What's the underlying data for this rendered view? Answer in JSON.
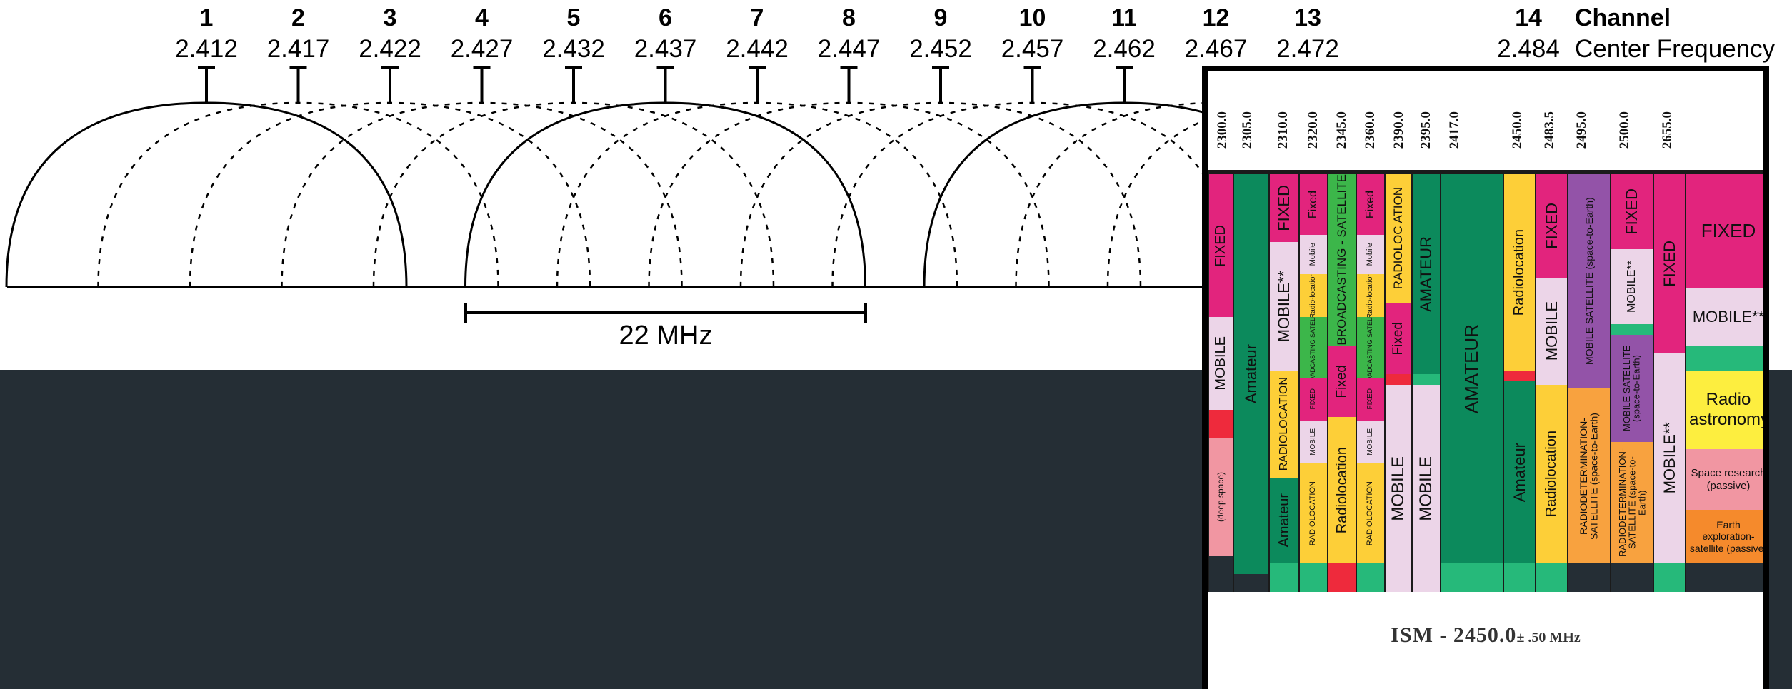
{
  "legend": {
    "channel": "Channel",
    "center_frequency": "Center Frequency"
  },
  "channels": [
    {
      "n": "1",
      "f": "2.412"
    },
    {
      "n": "2",
      "f": "2.417"
    },
    {
      "n": "3",
      "f": "2.422"
    },
    {
      "n": "4",
      "f": "2.427"
    },
    {
      "n": "5",
      "f": "2.432"
    },
    {
      "n": "6",
      "f": "2.437"
    },
    {
      "n": "7",
      "f": "2.442"
    },
    {
      "n": "8",
      "f": "2.447"
    },
    {
      "n": "9",
      "f": "2.452"
    },
    {
      "n": "10",
      "f": "2.457"
    },
    {
      "n": "11",
      "f": "2.462"
    },
    {
      "n": "12",
      "f": "2.467"
    },
    {
      "n": "13",
      "f": "2.472"
    },
    {
      "n": "14",
      "f": "2.484"
    }
  ],
  "bandwidth_label": "22 MHz",
  "allocation": {
    "frequencies": [
      "2300.0",
      "2305.0",
      "2310.0",
      "2320.0",
      "2345.0",
      "2360.0",
      "2390.0",
      "2395.0",
      "2417.0",
      "2450.0",
      "2483.5",
      "2495.0",
      "2500.0",
      "2655.0"
    ],
    "ism_main": "ISM - 2450.0",
    "ism_suffix": "± .50 MHz",
    "labels": {
      "fixed_upper": "FIXED",
      "fixed": "Fixed",
      "mobile_upper": "MOBILE",
      "mobile_star": "MOBILE**",
      "mobile_small": "Mobile",
      "amateur_upper": "AMATEUR",
      "amateur": "Amateur",
      "radiolocation_upper": "RADIOLOCATION",
      "radiolocation": "Radiolocation",
      "radio_location_split": "Radio-location",
      "radiolocation_split_upper": "RADIOLOC ATION",
      "broadcasting_satellite": "BROADCASTING - SATELLITE",
      "broadcasting_satellite_small": "BROADCASTING SATELLITE",
      "deep_space": "(deep space)",
      "mobile_satellite": "MOBILE SATELLITE (space-to-Earth)",
      "rdss": "RADIODETERMINATION- SATELLITE (space-to-Earth)",
      "radio_astronomy": "Radio astronomy",
      "space_research": "Space research (passive)",
      "earth_exploration": "Earth exploration-satellite (passive)"
    }
  },
  "colors": {
    "fixed": "#e2247d",
    "mobile": "#ecd5e8",
    "amateur": "#0c8a5c",
    "radiolocation": "#fdcf38",
    "broadcasting_satellite": "#3cb64a",
    "mobile_satellite": "#9353a8",
    "rdss": "#f8a23f",
    "radio_astronomy": "#fdee3f",
    "space_research": "#f196a2",
    "earth_exploration": "#f58a2c",
    "isn_strip": "#26b97a",
    "red_strip": "#ee2a3c"
  }
}
